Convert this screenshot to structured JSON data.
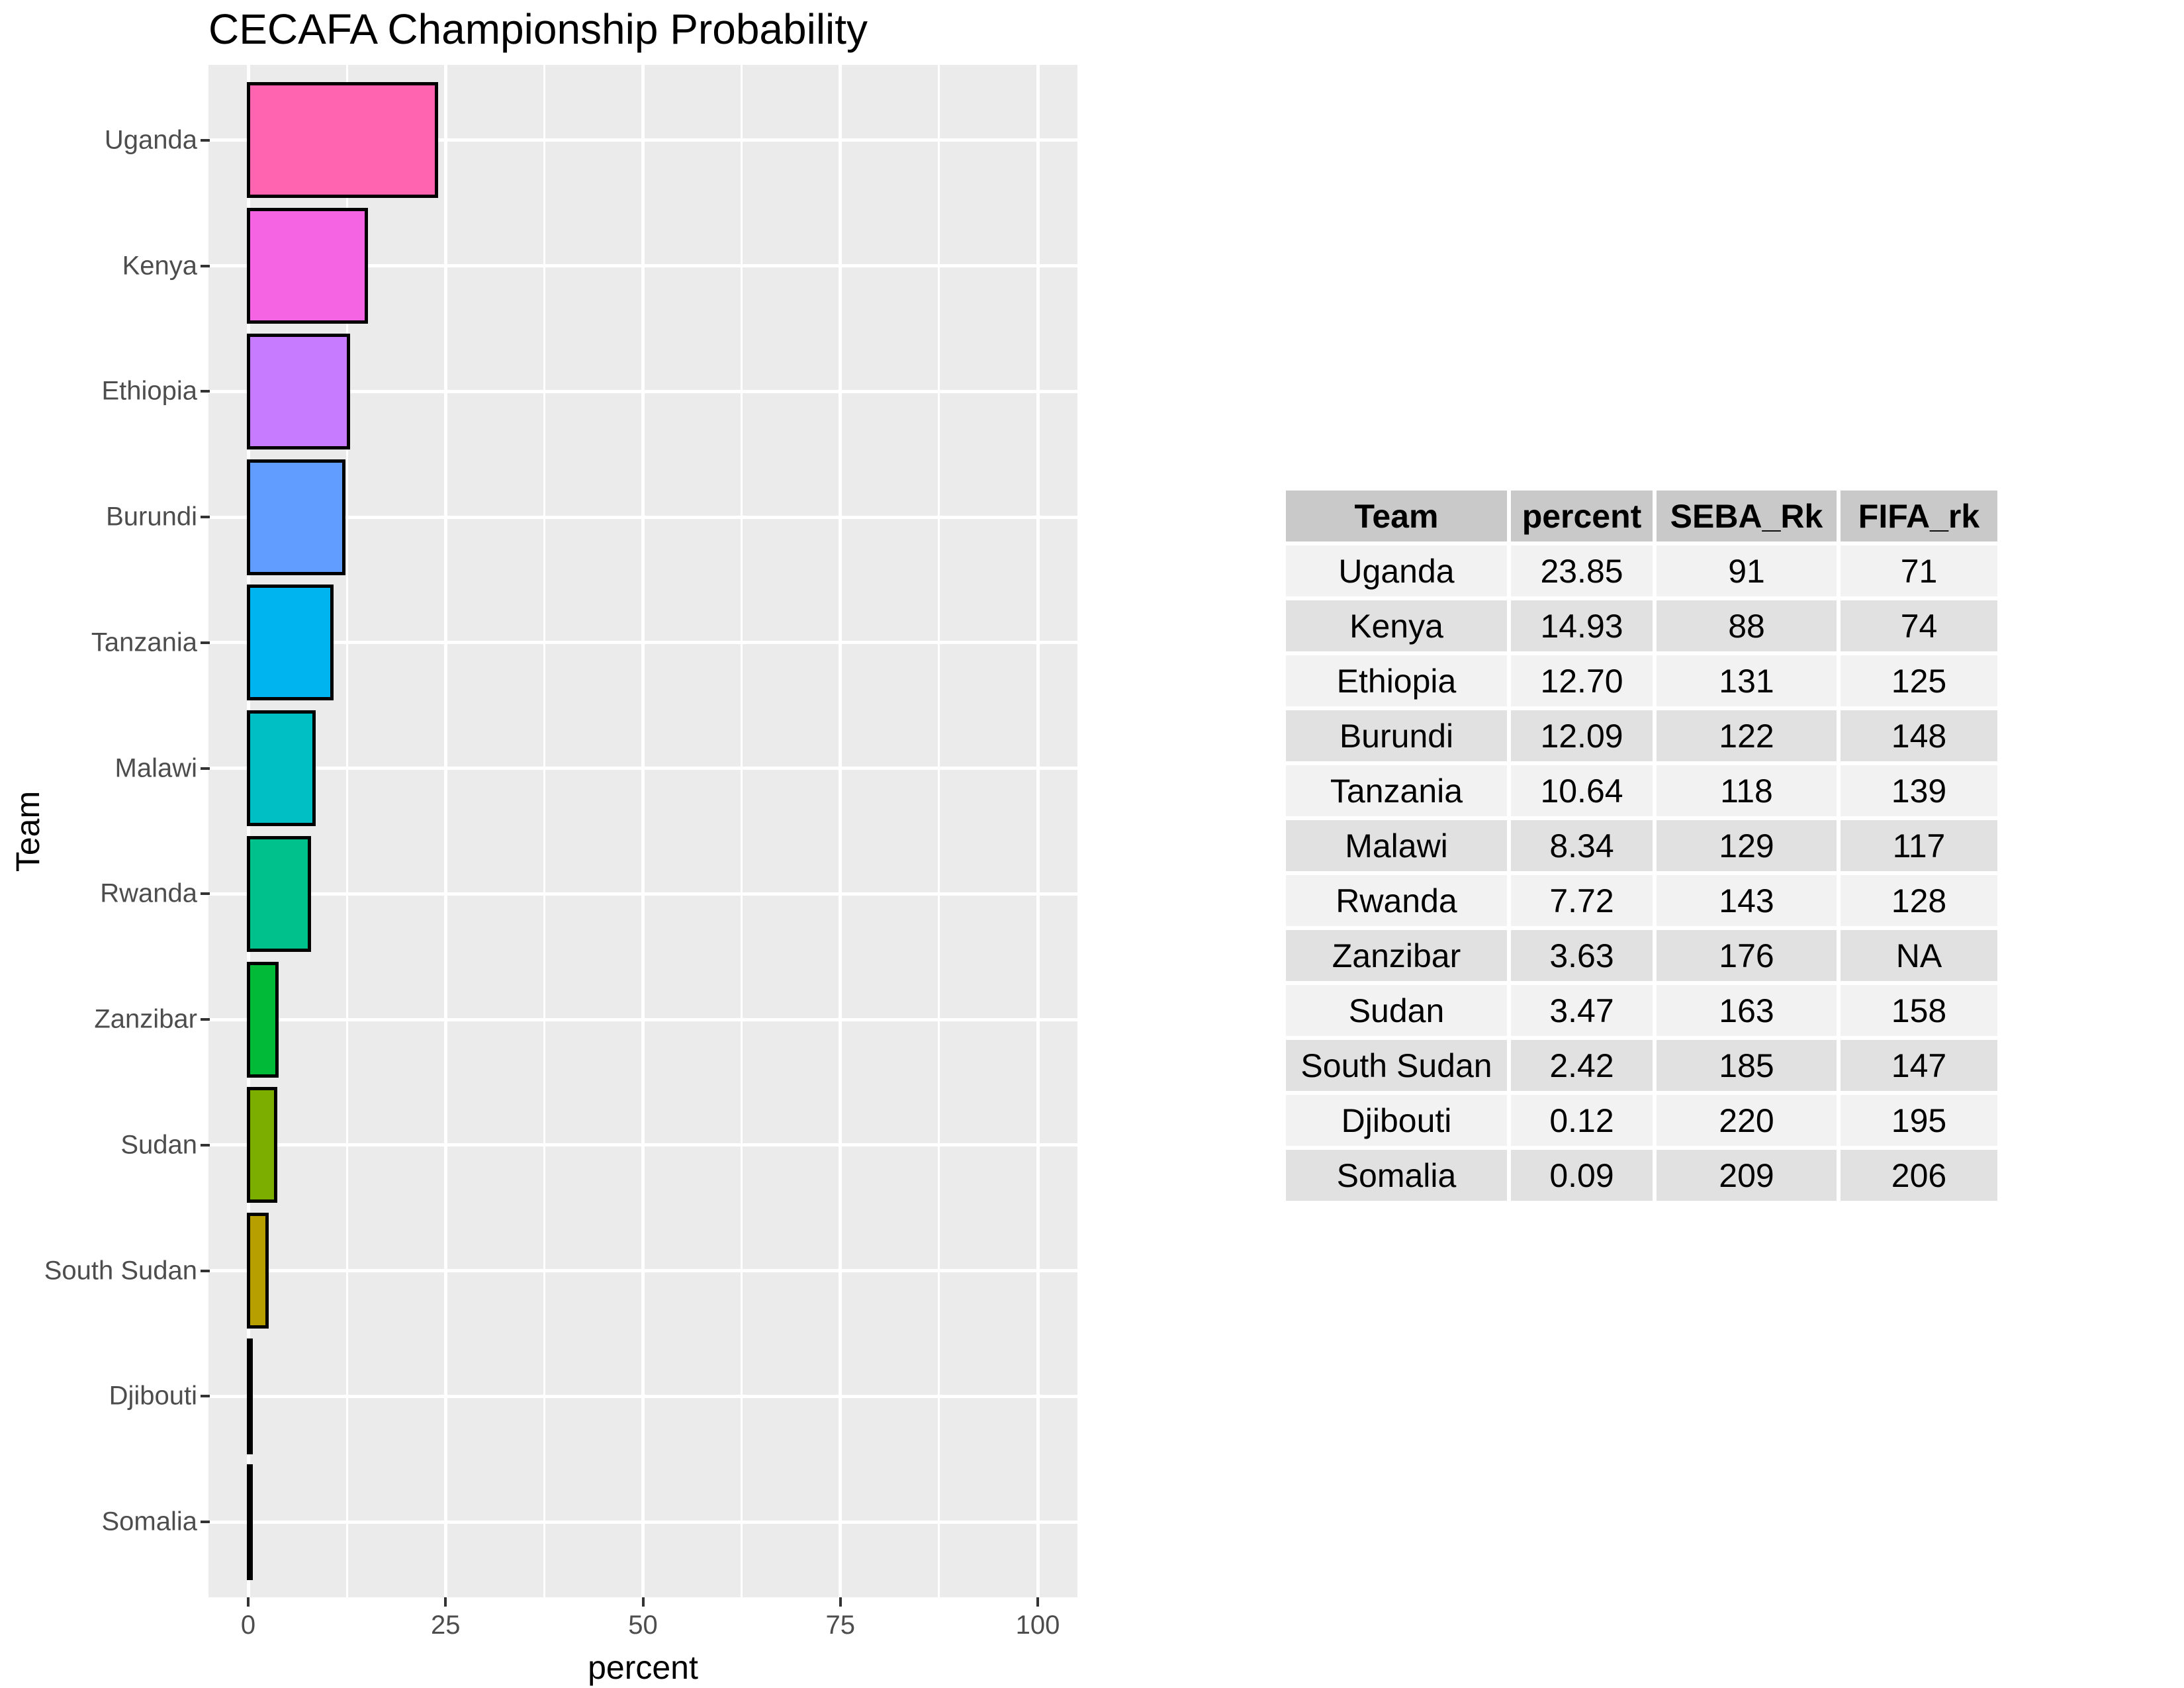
{
  "chart_data": {
    "type": "bar",
    "orientation": "horizontal",
    "title": "CECAFA Championship Probability",
    "xlabel": "percent",
    "ylabel": "Team",
    "xlim": [
      0,
      100
    ],
    "x_major_ticks": [
      0,
      25,
      50,
      75,
      100
    ],
    "x_tick_labels": [
      "0",
      "25",
      "50",
      "75",
      "100"
    ],
    "x_minor_gridlines": [
      12.5,
      37.5,
      62.5,
      87.5
    ],
    "grid": true,
    "legend": false,
    "categories": [
      "Uganda",
      "Kenya",
      "Ethiopia",
      "Burundi",
      "Tanzania",
      "Malawi",
      "Rwanda",
      "Zanzibar",
      "Sudan",
      "South Sudan",
      "Djibouti",
      "Somalia"
    ],
    "values": [
      23.85,
      14.93,
      12.7,
      12.09,
      10.64,
      8.34,
      7.72,
      3.63,
      3.47,
      2.42,
      0.12,
      0.09
    ],
    "bar_colors": [
      "#FF64B0",
      "#F564E3",
      "#C77CFF",
      "#619CFF",
      "#00B4F0",
      "#00BFC4",
      "#00C08B",
      "#00BA38",
      "#7CAE00",
      "#B79F00",
      "#DE8C00",
      "#F8766D"
    ],
    "colors": {
      "panel_background": "#EBEBEB",
      "gridline": "#FFFFFF",
      "bar_outline": "#000000",
      "axis_text": "#4D4D4D",
      "tick_mark": "#333333",
      "title_text": "#000000"
    }
  },
  "table": {
    "headers": [
      "Team",
      "percent",
      "SEBA_Rk",
      "FIFA_rk"
    ],
    "rows": [
      [
        "Uganda",
        "23.85",
        "91",
        "71"
      ],
      [
        "Kenya",
        "14.93",
        "88",
        "74"
      ],
      [
        "Ethiopia",
        "12.70",
        "131",
        "125"
      ],
      [
        "Burundi",
        "12.09",
        "122",
        "148"
      ],
      [
        "Tanzania",
        "10.64",
        "118",
        "139"
      ],
      [
        "Malawi",
        "8.34",
        "129",
        "117"
      ],
      [
        "Rwanda",
        "7.72",
        "143",
        "128"
      ],
      [
        "Zanzibar",
        "3.63",
        "176",
        "NA"
      ],
      [
        "Sudan",
        "3.47",
        "163",
        "158"
      ],
      [
        "South Sudan",
        "2.42",
        "185",
        "147"
      ],
      [
        "Djibouti",
        "0.12",
        "220",
        "195"
      ],
      [
        "Somalia",
        "0.09",
        "209",
        "206"
      ]
    ],
    "colors": {
      "header_bg": "#C9C9C9",
      "row_odd_bg": "#F2F2F2",
      "row_even_bg": "#E1E1E1",
      "text": "#000000"
    }
  }
}
